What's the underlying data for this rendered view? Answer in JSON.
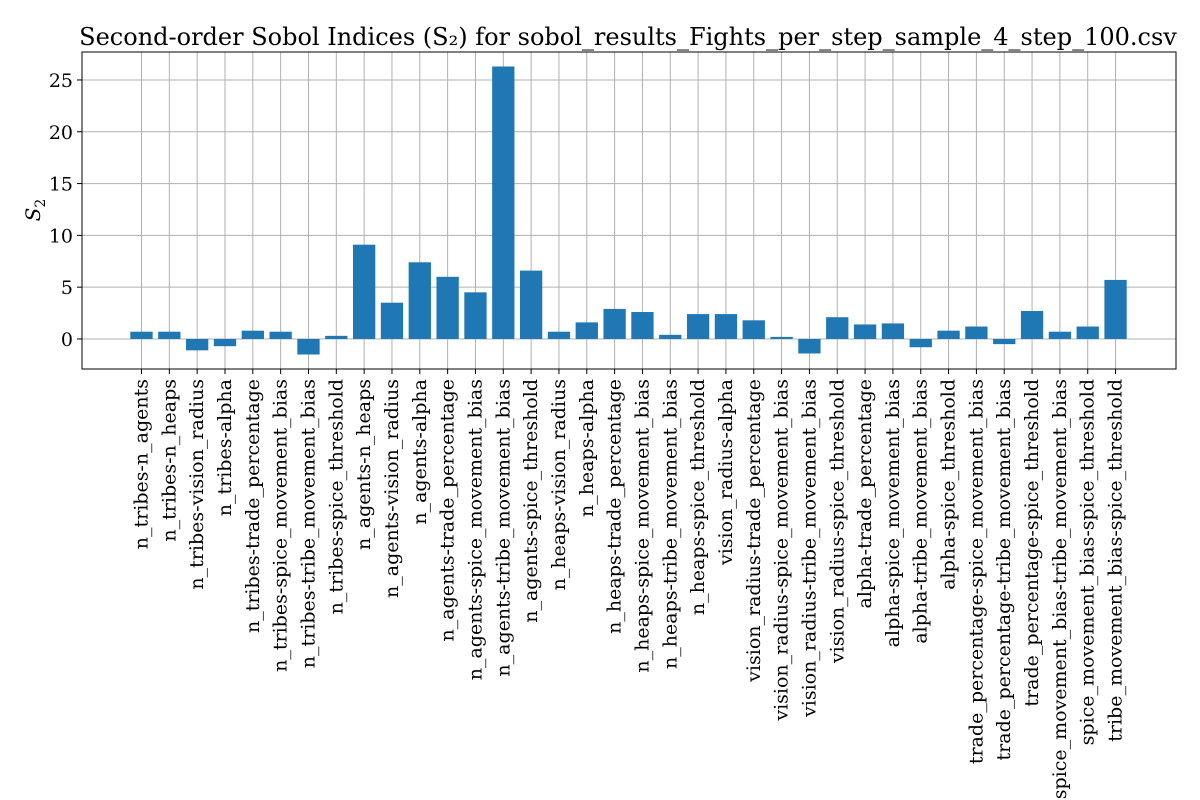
{
  "chart_data": {
    "type": "bar",
    "title": "Second-order Sobol Indices (S₂) for sobol_results_Fights_per_step_sample_4_step_100.csv",
    "xlabel": "",
    "ylabel": "S",
    "ylabel_sub": "2",
    "ylim": [
      -2.9,
      27.7
    ],
    "yticks": [
      0,
      5,
      10,
      15,
      20,
      25
    ],
    "grid": true,
    "bar_color": "#1f77b4",
    "categories": [
      "n_tribes-n_agents",
      "n_tribes-n_heaps",
      "n_tribes-vision_radius",
      "n_tribes-alpha",
      "n_tribes-trade_percentage",
      "n_tribes-spice_movement_bias",
      "n_tribes-tribe_movement_bias",
      "n_tribes-spice_threshold",
      "n_agents-n_heaps",
      "n_agents-vision_radius",
      "n_agents-alpha",
      "n_agents-trade_percentage",
      "n_agents-spice_movement_bias",
      "n_agents-tribe_movement_bias",
      "n_agents-spice_threshold",
      "n_heaps-vision_radius",
      "n_heaps-alpha",
      "n_heaps-trade_percentage",
      "n_heaps-spice_movement_bias",
      "n_heaps-tribe_movement_bias",
      "n_heaps-spice_threshold",
      "vision_radius-alpha",
      "vision_radius-trade_percentage",
      "vision_radius-spice_movement_bias",
      "vision_radius-tribe_movement_bias",
      "vision_radius-spice_threshold",
      "alpha-trade_percentage",
      "alpha-spice_movement_bias",
      "alpha-tribe_movement_bias",
      "alpha-spice_threshold",
      "trade_percentage-spice_movement_bias",
      "trade_percentage-tribe_movement_bias",
      "trade_percentage-spice_threshold",
      "spice_movement_bias-tribe_movement_bias",
      "spice_movement_bias-spice_threshold",
      "tribe_movement_bias-spice_threshold"
    ],
    "values": [
      0.7,
      0.7,
      -1.1,
      -0.7,
      0.8,
      0.7,
      -1.5,
      0.3,
      9.1,
      3.5,
      7.4,
      6.0,
      4.5,
      26.3,
      6.6,
      0.7,
      1.6,
      2.9,
      2.6,
      0.4,
      2.4,
      2.4,
      1.8,
      0.2,
      -1.4,
      2.1,
      1.4,
      1.5,
      -0.8,
      0.8,
      1.2,
      -0.5,
      2.7,
      0.7,
      1.2,
      5.7
    ]
  }
}
